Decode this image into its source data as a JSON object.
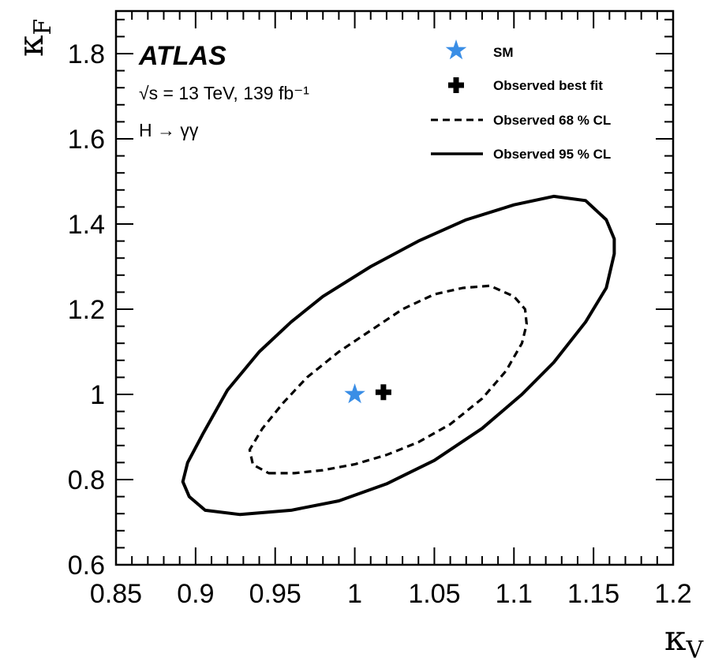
{
  "chart_data": {
    "type": "contour",
    "experiment": "ATLAS",
    "annotations": {
      "energy_lumi": "√s = 13 TeV, 139 fb⁻¹",
      "channel": "H → γγ"
    },
    "xlabel": "κV",
    "ylabel": "κF",
    "xlim": [
      0.85,
      1.2
    ],
    "ylim": [
      0.6,
      1.9
    ],
    "xticks": [
      0.85,
      0.9,
      0.95,
      1,
      1.05,
      1.1,
      1.15,
      1.2
    ],
    "yticks": [
      0.6,
      0.8,
      1,
      1.2,
      1.4,
      1.6,
      1.8
    ],
    "xtick_labels": [
      "0.85",
      "0.9",
      "0.95",
      "1",
      "1.05",
      "1.1",
      "1.15",
      "1.2"
    ],
    "ytick_labels": [
      "0.6",
      "0.8",
      "1",
      "1.2",
      "1.4",
      "1.6",
      "1.8"
    ],
    "legend_position": "top-right",
    "legend": {
      "sm": "SM",
      "best_fit": "Observed best fit",
      "cl68": "Observed 68 % CL",
      "cl95": "Observed 95 % CL"
    },
    "colors": {
      "sm": "#3a8ee6",
      "best_fit": "#000000",
      "contours": "#000000"
    },
    "sm_point": {
      "x": 1.0,
      "y": 1.0
    },
    "best_fit_point": {
      "x": 1.018,
      "y": 1.005
    },
    "contour_68": [
      [
        0.946,
        0.815
      ],
      [
        0.962,
        0.815
      ],
      [
        0.98,
        0.822
      ],
      [
        1.0,
        0.836
      ],
      [
        1.02,
        0.858
      ],
      [
        1.04,
        0.888
      ],
      [
        1.06,
        0.93
      ],
      [
        1.08,
        0.99
      ],
      [
        1.095,
        1.055
      ],
      [
        1.105,
        1.12
      ],
      [
        1.108,
        1.165
      ],
      [
        1.107,
        1.2
      ],
      [
        1.1,
        1.23
      ],
      [
        1.085,
        1.255
      ],
      [
        1.068,
        1.25
      ],
      [
        1.05,
        1.235
      ],
      [
        1.03,
        1.2
      ],
      [
        1.01,
        1.15
      ],
      [
        0.99,
        1.1
      ],
      [
        0.97,
        1.04
      ],
      [
        0.955,
        0.98
      ],
      [
        0.942,
        0.92
      ],
      [
        0.934,
        0.87
      ],
      [
        0.936,
        0.835
      ]
    ],
    "contour_95": [
      [
        0.928,
        0.718
      ],
      [
        0.96,
        0.728
      ],
      [
        0.99,
        0.75
      ],
      [
        1.02,
        0.79
      ],
      [
        1.05,
        0.845
      ],
      [
        1.08,
        0.92
      ],
      [
        1.105,
        1.0
      ],
      [
        1.125,
        1.075
      ],
      [
        1.145,
        1.17
      ],
      [
        1.158,
        1.25
      ],
      [
        1.163,
        1.33
      ],
      [
        1.163,
        1.365
      ],
      [
        1.158,
        1.41
      ],
      [
        1.145,
        1.455
      ],
      [
        1.125,
        1.465
      ],
      [
        1.1,
        1.445
      ],
      [
        1.07,
        1.41
      ],
      [
        1.04,
        1.36
      ],
      [
        1.01,
        1.3
      ],
      [
        0.98,
        1.23
      ],
      [
        0.96,
        1.17
      ],
      [
        0.94,
        1.1
      ],
      [
        0.92,
        1.01
      ],
      [
        0.905,
        0.91
      ],
      [
        0.895,
        0.84
      ],
      [
        0.892,
        0.795
      ],
      [
        0.896,
        0.76
      ],
      [
        0.906,
        0.728
      ]
    ]
  }
}
